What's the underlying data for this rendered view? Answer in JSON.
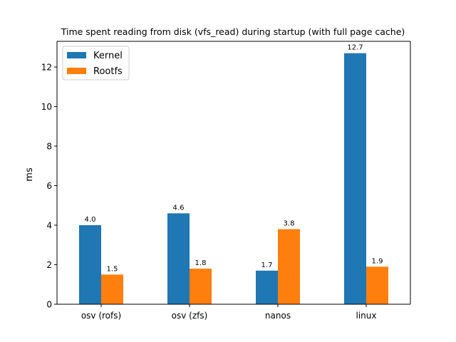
{
  "chart_data": {
    "type": "bar",
    "title": "Time spent reading from disk (vfs_read) during startup (with full page cache)",
    "xlabel": "",
    "ylabel": "ms",
    "categories": [
      "osv (rofs)",
      "osv (zfs)",
      "nanos",
      "linux"
    ],
    "series": [
      {
        "name": "Kernel",
        "color": "#1f77b4",
        "values": [
          4.0,
          4.6,
          1.7,
          12.7
        ],
        "labels": [
          "4.0",
          "4.6",
          "1.7",
          "12.7"
        ]
      },
      {
        "name": "Rootfs",
        "color": "#ff7f0e",
        "values": [
          1.5,
          1.8,
          3.8,
          1.9
        ],
        "labels": [
          "1.5",
          "1.8",
          "3.8",
          "1.9"
        ]
      }
    ],
    "ylim": [
      0,
      13.3
    ],
    "yticks": [
      0,
      2,
      4,
      6,
      8,
      10,
      12
    ],
    "grid": false,
    "legend_position": "top-left"
  }
}
